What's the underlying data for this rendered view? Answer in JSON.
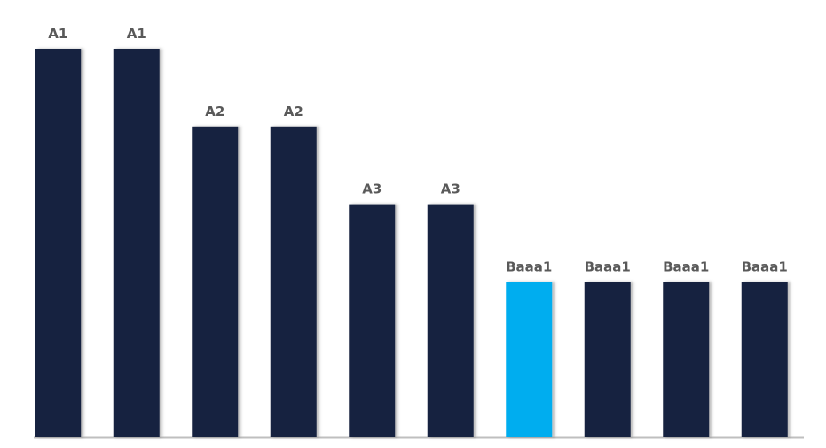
{
  "chart_data": {
    "type": "bar",
    "categories": [
      "A1",
      "A1",
      "A2",
      "A2",
      "A3",
      "A3",
      "Baaa1",
      "Baaa1",
      "Baaa1",
      "Baaa1"
    ],
    "values": [
      5,
      5,
      4,
      4,
      3,
      3,
      2,
      2,
      2,
      2
    ],
    "colors": [
      "#12233f",
      "#12233f",
      "#12233f",
      "#12233f",
      "#12233f",
      "#12233f",
      "#00adef",
      "#12233f",
      "#12233f",
      "#12233f"
    ],
    "ylim": [
      0,
      5
    ]
  }
}
